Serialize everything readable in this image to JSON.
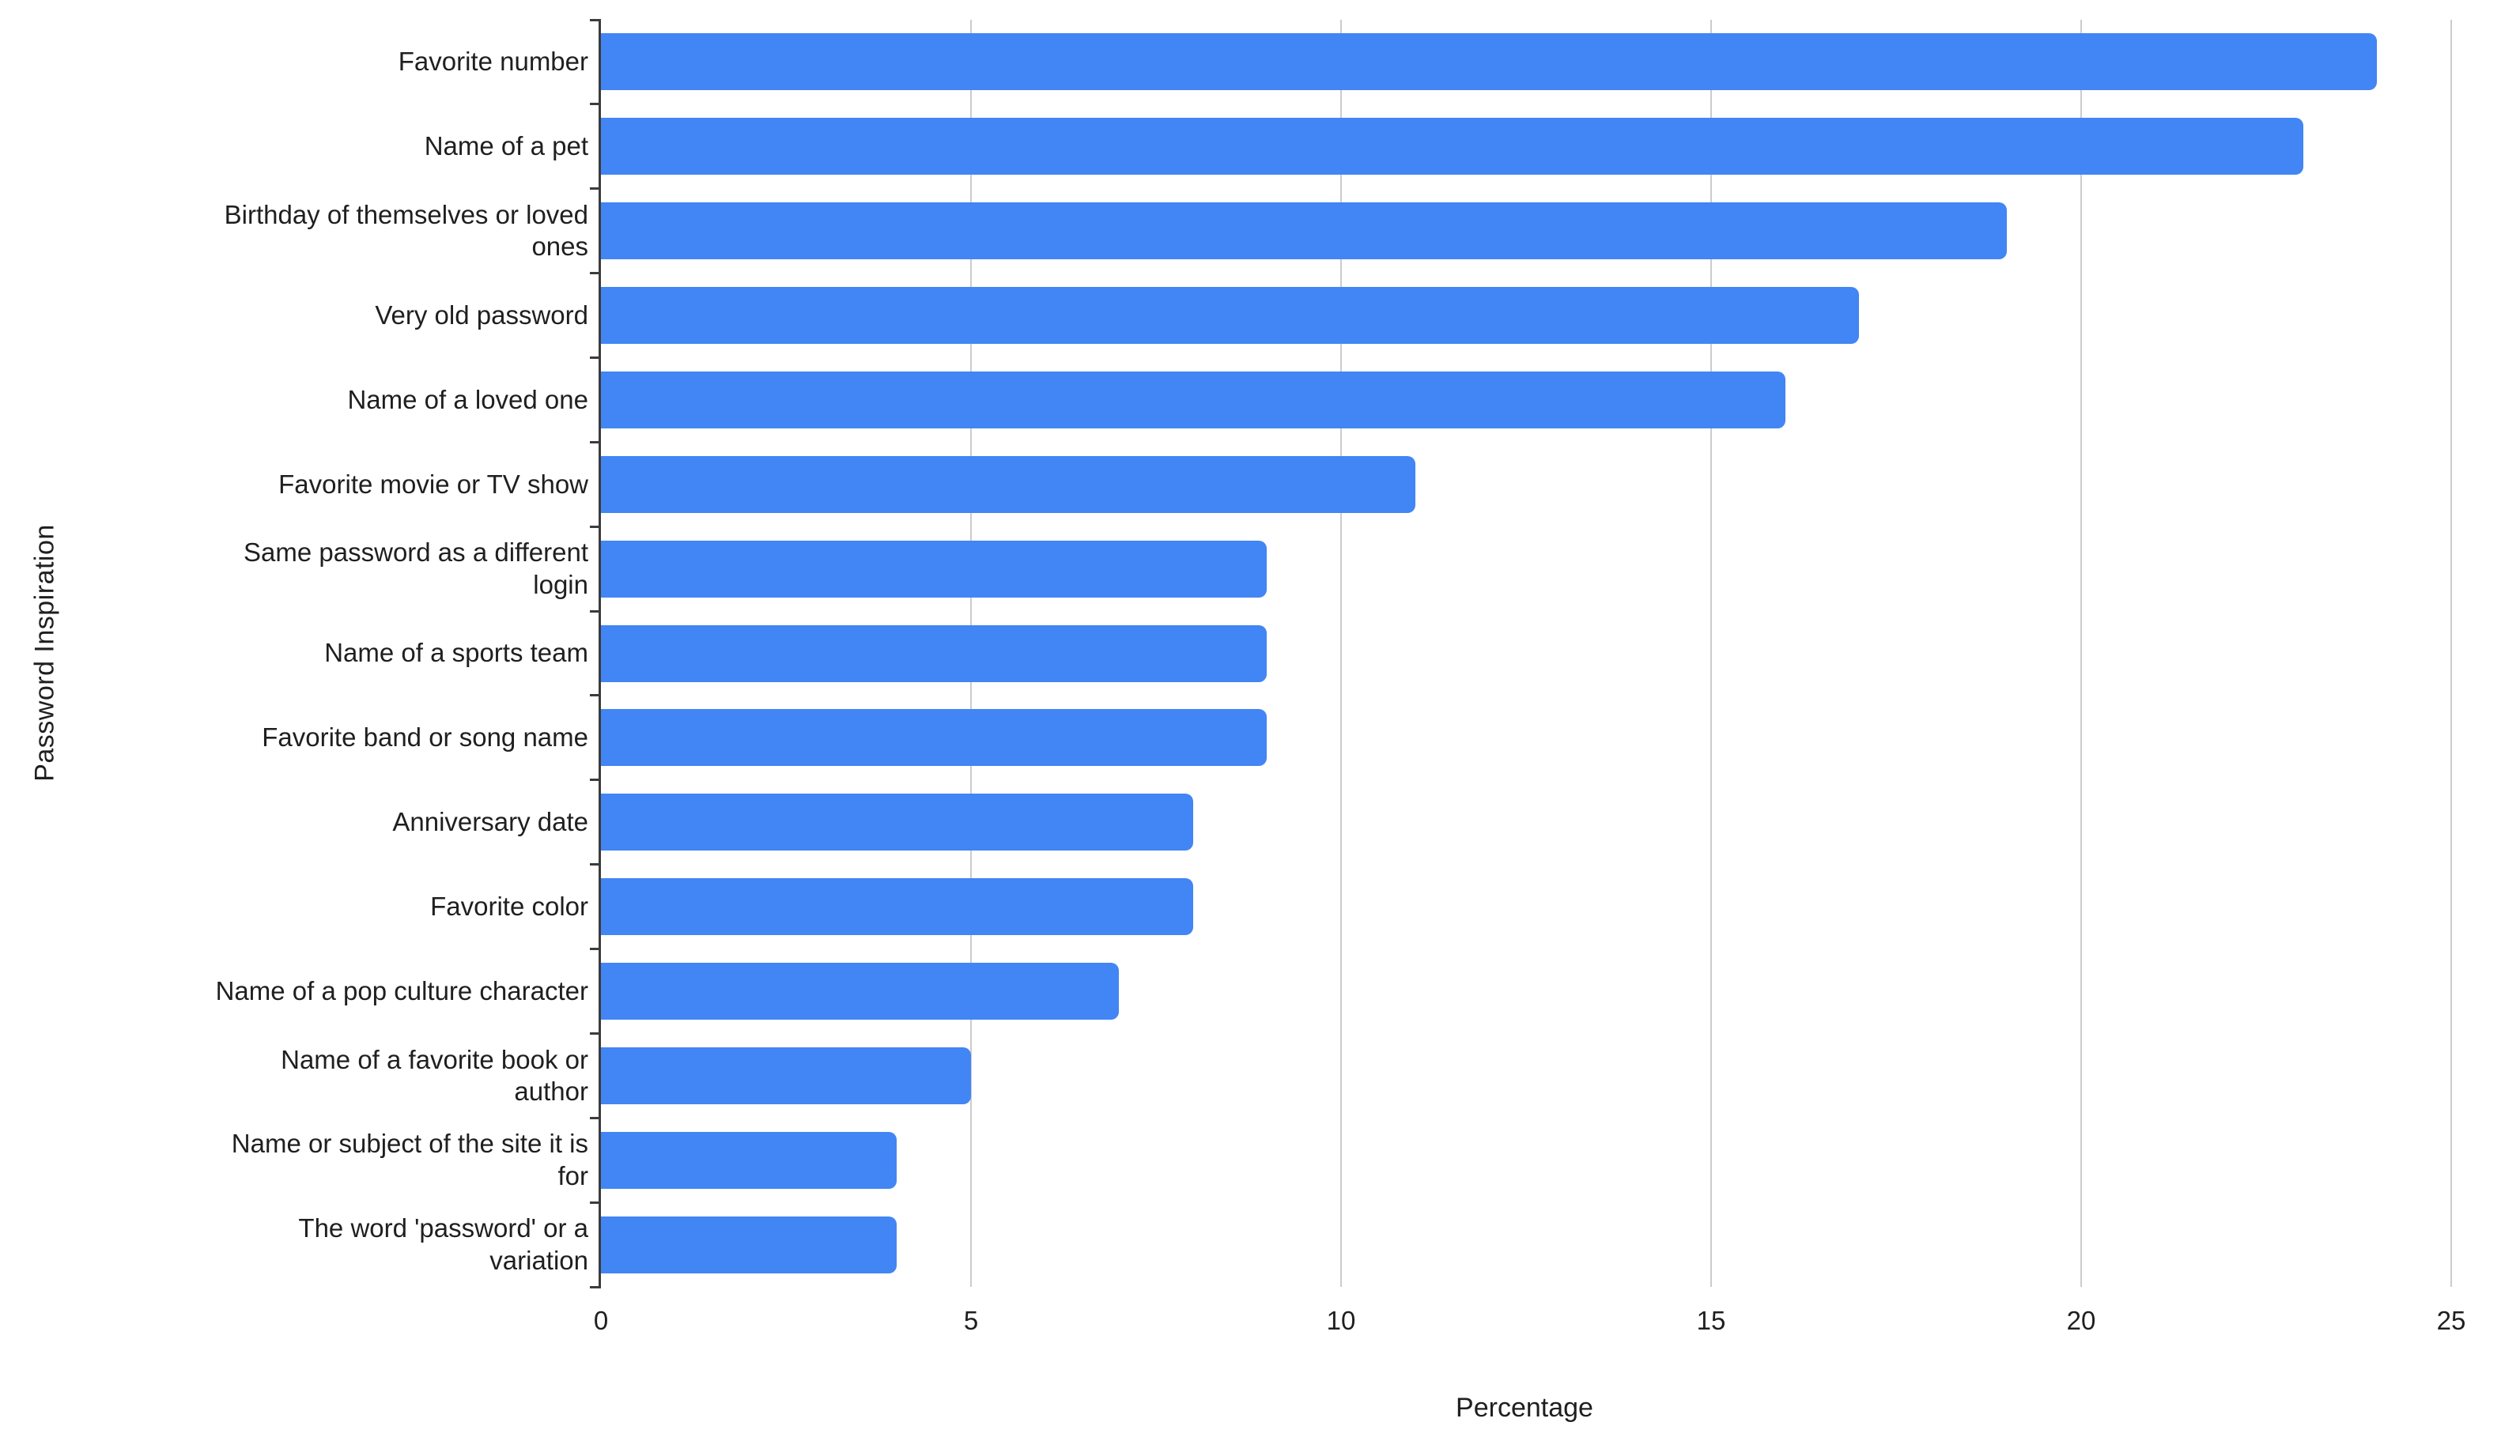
{
  "chart_data": {
    "type": "bar",
    "orientation": "horizontal",
    "title": "",
    "xlabel": "Percentage",
    "ylabel": "Password Inspiration",
    "xlim": [
      0,
      25
    ],
    "xticks": [
      0,
      5,
      10,
      15,
      20,
      25
    ],
    "grid": "vertical-gridlines-on",
    "legend": "none",
    "bar_color": "#4285f4",
    "axis_color": "#3c3c3c",
    "gridline_color": "#cccccc",
    "text_color": "#1f1f1f",
    "categories": [
      "Favorite number",
      "Name of a pet",
      "Birthday of themselves or loved ones",
      "Very old password",
      "Name of a loved one",
      "Favorite movie or TV show",
      "Same password as a different login",
      "Name of a sports team",
      "Favorite band or song name",
      "Anniversary date",
      "Favorite color",
      "Name of a pop culture character",
      "Name of a favorite book or author",
      "Name or subject of the site it is for",
      "The word 'password' or a variation"
    ],
    "categories_display": [
      [
        "Favorite number"
      ],
      [
        "Name of a pet"
      ],
      [
        "Birthday of themselves or loved",
        "ones"
      ],
      [
        "Very old password"
      ],
      [
        "Name of a loved one"
      ],
      [
        "Favorite movie or TV show"
      ],
      [
        "Same password as a different",
        "login"
      ],
      [
        "Name of a sports team"
      ],
      [
        "Favorite band or song name"
      ],
      [
        "Anniversary date"
      ],
      [
        "Favorite color"
      ],
      [
        "Name of a pop culture character"
      ],
      [
        "Name of a favorite book or",
        "author"
      ],
      [
        "Name or subject of the site it is",
        "for"
      ],
      [
        "The word 'password' or a",
        "variation"
      ]
    ],
    "values": [
      24,
      23,
      19,
      17,
      16,
      11,
      9,
      9,
      9,
      8,
      8,
      7,
      5,
      4,
      4
    ]
  }
}
